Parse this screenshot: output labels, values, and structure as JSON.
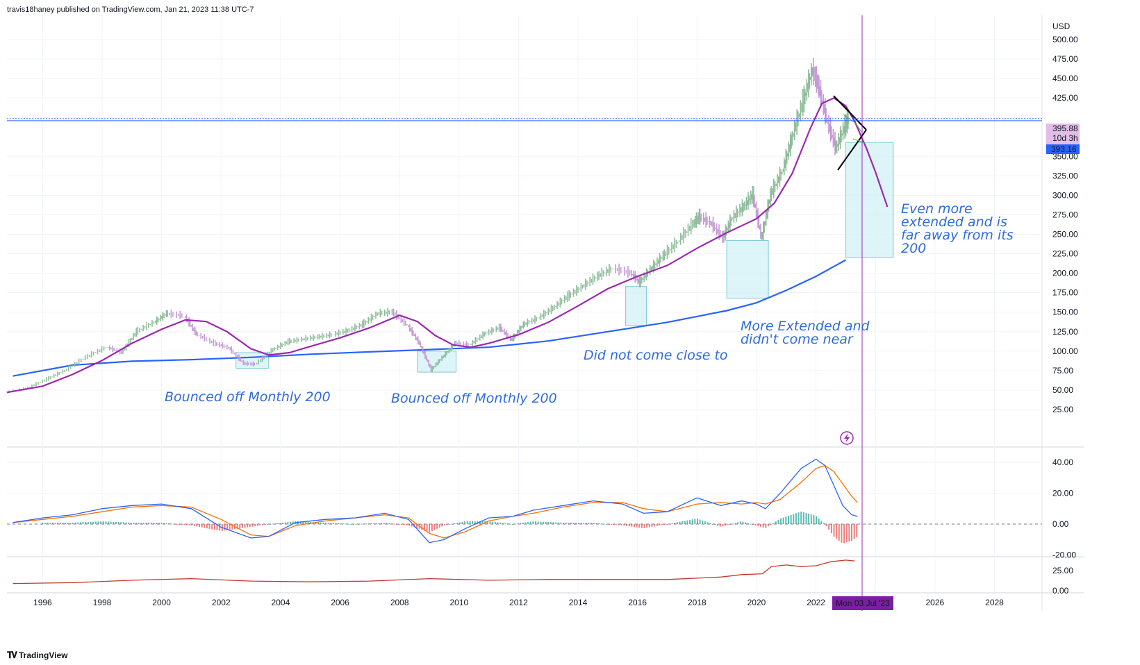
{
  "header": {
    "text": "travis18haney published on TradingView.com, Jan 21, 2023 11:38 UTC-7"
  },
  "footer": {
    "brand": "TradingView",
    "logo_icon": "tradingview-logo-icon"
  },
  "colors": {
    "price_up": "#8fbc9a",
    "price_down": "#c39bd3",
    "ma_short": "#9c27b0",
    "ma_long": "#2962ff",
    "box_fill": "#d4f1f7",
    "box_stroke": "#7fc9d6",
    "macd_line": "#2962ff",
    "signal_line": "#ff6d00",
    "hist_pos": "#26a69a",
    "hist_neg": "#ef5350",
    "third_line": "#c0392b",
    "price_line": "#2962ff",
    "crosshair": "#9c27b0",
    "annotation": "#2f6bd9"
  },
  "chart_data": [
    {
      "type": "line",
      "title": "",
      "x_ticks": [
        "1996",
        "1998",
        "2000",
        "2002",
        "2004",
        "2006",
        "2008",
        "2010",
        "2012",
        "2014",
        "2016",
        "2018",
        "2020",
        "2022",
        "2026",
        "2028"
      ],
      "y_unit": "USD",
      "y_ticks": [
        "500.00",
        "475.00",
        "450.00",
        "425.00",
        "400.00",
        "350.00",
        "325.00",
        "300.00",
        "275.00",
        "250.00",
        "225.00",
        "200.00",
        "175.00",
        "150.00",
        "125.00",
        "100.00",
        "75.00",
        "50.00",
        "25.00"
      ],
      "ylim": [
        0,
        520
      ],
      "series": [
        {
          "name": "",
          "role": "price",
          "points": [
            [
              1994.8,
              47
            ],
            [
              1995.5,
              52
            ],
            [
              1996.2,
              64
            ],
            [
              1996.8,
              75
            ],
            [
              1997.5,
              92
            ],
            [
              1998.2,
              105
            ],
            [
              1998.7,
              98
            ],
            [
              1999.2,
              125
            ],
            [
              1999.8,
              137
            ],
            [
              2000.2,
              148
            ],
            [
              2000.8,
              145
            ],
            [
              2001.2,
              122
            ],
            [
              2001.8,
              110
            ],
            [
              2002.3,
              104
            ],
            [
              2002.8,
              84
            ],
            [
              2003.2,
              83
            ],
            [
              2003.8,
              102
            ],
            [
              2004.3,
              112
            ],
            [
              2004.8,
              115
            ],
            [
              2005.3,
              118
            ],
            [
              2005.8,
              121
            ],
            [
              2006.3,
              126
            ],
            [
              2006.8,
              134
            ],
            [
              2007.3,
              148
            ],
            [
              2007.8,
              150
            ],
            [
              2008.3,
              133
            ],
            [
              2008.7,
              110
            ],
            [
              2009.1,
              76
            ],
            [
              2009.5,
              93
            ],
            [
              2009.9,
              110
            ],
            [
              2010.4,
              108
            ],
            [
              2010.9,
              122
            ],
            [
              2011.4,
              130
            ],
            [
              2011.8,
              114
            ],
            [
              2012.2,
              134
            ],
            [
              2012.7,
              142
            ],
            [
              2013.2,
              155
            ],
            [
              2013.7,
              170
            ],
            [
              2014.2,
              183
            ],
            [
              2014.7,
              196
            ],
            [
              2015.2,
              206
            ],
            [
              2015.8,
              200
            ],
            [
              2016.1,
              188
            ],
            [
              2016.5,
              206
            ],
            [
              2016.9,
              222
            ],
            [
              2017.4,
              240
            ],
            [
              2017.9,
              263
            ],
            [
              2018.1,
              272
            ],
            [
              2018.5,
              264
            ],
            [
              2018.9,
              245
            ],
            [
              2019.2,
              270
            ],
            [
              2019.6,
              285
            ],
            [
              2019.9,
              300
            ],
            [
              2020.2,
              245
            ],
            [
              2020.5,
              300
            ],
            [
              2020.9,
              330
            ],
            [
              2021.2,
              370
            ],
            [
              2021.6,
              420
            ],
            [
              2021.9,
              460
            ],
            [
              2022.1,
              440
            ],
            [
              2022.4,
              395
            ],
            [
              2022.7,
              360
            ],
            [
              2023.0,
              388
            ],
            [
              2023.1,
              396
            ]
          ]
        },
        {
          "name": "",
          "role": "moving-average-short",
          "points": [
            [
              1994.8,
              47
            ],
            [
              1996.0,
              55
            ],
            [
              1997.0,
              70
            ],
            [
              1998.0,
              88
            ],
            [
              1999.0,
              110
            ],
            [
              2000.0,
              128
            ],
            [
              2000.8,
              140
            ],
            [
              2001.5,
              138
            ],
            [
              2002.2,
              125
            ],
            [
              2003.0,
              103
            ],
            [
              2003.6,
              95
            ],
            [
              2004.3,
              98
            ],
            [
              2005.0,
              106
            ],
            [
              2006.0,
              117
            ],
            [
              2007.0,
              130
            ],
            [
              2008.0,
              146
            ],
            [
              2008.6,
              138
            ],
            [
              2009.2,
              120
            ],
            [
              2009.8,
              108
            ],
            [
              2010.4,
              105
            ],
            [
              2011.0,
              110
            ],
            [
              2012.0,
              121
            ],
            [
              2013.0,
              137
            ],
            [
              2014.0,
              158
            ],
            [
              2015.0,
              180
            ],
            [
              2016.0,
              196
            ],
            [
              2017.0,
              210
            ],
            [
              2018.0,
              232
            ],
            [
              2019.0,
              252
            ],
            [
              2020.0,
              270
            ],
            [
              2020.6,
              290
            ],
            [
              2021.2,
              328
            ],
            [
              2021.8,
              385
            ],
            [
              2022.2,
              418
            ],
            [
              2022.6,
              425
            ],
            [
              2023.0,
              415
            ],
            [
              2023.3,
              395
            ],
            [
              2023.7,
              360
            ],
            [
              2024.0,
              330
            ],
            [
              2024.4,
              285
            ]
          ]
        },
        {
          "name": "",
          "role": "moving-average-long",
          "points": [
            [
              1995.0,
              68
            ],
            [
              1997.0,
              82
            ],
            [
              1999.0,
              87
            ],
            [
              2001.0,
              89
            ],
            [
              2003.0,
              92
            ],
            [
              2005.0,
              96
            ],
            [
              2007.0,
              99
            ],
            [
              2009.0,
              102
            ],
            [
              2011.0,
              105
            ],
            [
              2013.0,
              113
            ],
            [
              2015.0,
              125
            ],
            [
              2017.0,
              137
            ],
            [
              2019.0,
              152
            ],
            [
              2020.0,
              162
            ],
            [
              2021.0,
              178
            ],
            [
              2022.0,
              196
            ],
            [
              2023.0,
              217
            ]
          ]
        }
      ],
      "reference_lines": {
        "horizontal_price": "395.88",
        "countdown": "10d 3h",
        "last_price": "393.16",
        "crosshair_date": "Mon 03 Jul '23"
      },
      "annotations": [
        {
          "text": "Bounced off Monthly 200"
        },
        {
          "text": "Bounced off Monthly 200"
        },
        {
          "text": "Did not come close to"
        },
        {
          "text": "More Extended and\ndidn't come near"
        },
        {
          "text": "Even more\nextended and is\nfar away from its\n200"
        }
      ],
      "shaded_boxes": [
        {
          "x": [
            2002.5,
            2003.6
          ],
          "y": [
            78,
            98
          ]
        },
        {
          "x": [
            2008.6,
            2009.9
          ],
          "y": [
            73,
            100
          ]
        },
        {
          "x": [
            2015.6,
            2016.3
          ],
          "y": [
            133,
            183
          ]
        },
        {
          "x": [
            2019.0,
            2020.4
          ],
          "y": [
            168,
            242
          ]
        },
        {
          "x": [
            2023.0,
            2024.6
          ],
          "y": [
            220,
            368
          ]
        }
      ]
    },
    {
      "type": "line",
      "title": "",
      "y_ticks": [
        "40.00",
        "20.00",
        "0.00",
        "-20.00"
      ],
      "ylim": [
        -20,
        45
      ],
      "series": [
        {
          "name": "",
          "role": "macd",
          "points": [
            [
              1995.0,
              1
            ],
            [
              1996.0,
              4
            ],
            [
              1997.0,
              6
            ],
            [
              1998.0,
              10
            ],
            [
              1999.0,
              12
            ],
            [
              2000.0,
              13
            ],
            [
              2001.0,
              10
            ],
            [
              2002.0,
              -2
            ],
            [
              2003.0,
              -9
            ],
            [
              2003.6,
              -8
            ],
            [
              2004.5,
              1
            ],
            [
              2005.5,
              3
            ],
            [
              2006.5,
              4
            ],
            [
              2007.5,
              7
            ],
            [
              2008.3,
              3
            ],
            [
              2009.0,
              -12
            ],
            [
              2009.5,
              -10
            ],
            [
              2010.2,
              -3
            ],
            [
              2011.0,
              4
            ],
            [
              2011.8,
              5
            ],
            [
              2012.5,
              9
            ],
            [
              2013.5,
              12
            ],
            [
              2014.5,
              15
            ],
            [
              2015.5,
              13
            ],
            [
              2016.2,
              7
            ],
            [
              2017.0,
              8
            ],
            [
              2018.0,
              17
            ],
            [
              2018.8,
              12
            ],
            [
              2019.5,
              15
            ],
            [
              2020.0,
              13
            ],
            [
              2020.3,
              10
            ],
            [
              2020.8,
              20
            ],
            [
              2021.5,
              36
            ],
            [
              2022.0,
              42
            ],
            [
              2022.3,
              38
            ],
            [
              2022.6,
              25
            ],
            [
              2022.9,
              12
            ],
            [
              2023.2,
              6
            ],
            [
              2023.4,
              5
            ]
          ]
        },
        {
          "name": "",
          "role": "signal",
          "points": [
            [
              1995.0,
              1
            ],
            [
              1996.0,
              3
            ],
            [
              1997.0,
              5
            ],
            [
              1998.0,
              8
            ],
            [
              1999.0,
              11
            ],
            [
              2000.0,
              12
            ],
            [
              2001.0,
              11
            ],
            [
              2002.0,
              3
            ],
            [
              2003.0,
              -7
            ],
            [
              2003.6,
              -8
            ],
            [
              2004.5,
              -1
            ],
            [
              2005.5,
              2
            ],
            [
              2006.5,
              4
            ],
            [
              2007.5,
              6
            ],
            [
              2008.3,
              4
            ],
            [
              2009.0,
              -6
            ],
            [
              2009.5,
              -9
            ],
            [
              2010.2,
              -5
            ],
            [
              2011.0,
              2
            ],
            [
              2011.8,
              5
            ],
            [
              2012.5,
              7
            ],
            [
              2013.5,
              11
            ],
            [
              2014.5,
              14
            ],
            [
              2015.5,
              14
            ],
            [
              2016.2,
              10
            ],
            [
              2017.0,
              8
            ],
            [
              2018.0,
              13
            ],
            [
              2018.8,
              14
            ],
            [
              2019.5,
              13
            ],
            [
              2020.0,
              14
            ],
            [
              2020.3,
              13
            ],
            [
              2020.8,
              16
            ],
            [
              2021.5,
              27
            ],
            [
              2022.0,
              36
            ],
            [
              2022.3,
              38
            ],
            [
              2022.6,
              34
            ],
            [
              2022.9,
              26
            ],
            [
              2023.2,
              18
            ],
            [
              2023.4,
              14
            ]
          ]
        }
      ]
    },
    {
      "type": "line",
      "title": "",
      "y_ticks": [
        "25.00",
        "0.00"
      ],
      "ylim": [
        -5,
        40
      ],
      "series": [
        {
          "name": "",
          "role": "indicator",
          "points": [
            [
              1995.0,
              9
            ],
            [
              1997.0,
              10
            ],
            [
              1999.0,
              13
            ],
            [
              2001.0,
              15
            ],
            [
              2003.0,
              12
            ],
            [
              2005.0,
              11
            ],
            [
              2007.0,
              12
            ],
            [
              2009.0,
              15
            ],
            [
              2011.0,
              13
            ],
            [
              2013.0,
              14
            ],
            [
              2015.0,
              14
            ],
            [
              2017.0,
              14
            ],
            [
              2018.8,
              17
            ],
            [
              2019.5,
              20
            ],
            [
              2020.2,
              21
            ],
            [
              2020.5,
              30
            ],
            [
              2021.0,
              32
            ],
            [
              2021.5,
              30
            ],
            [
              2022.0,
              31
            ],
            [
              2022.5,
              36
            ],
            [
              2023.0,
              38
            ],
            [
              2023.3,
              37
            ]
          ]
        }
      ]
    }
  ]
}
